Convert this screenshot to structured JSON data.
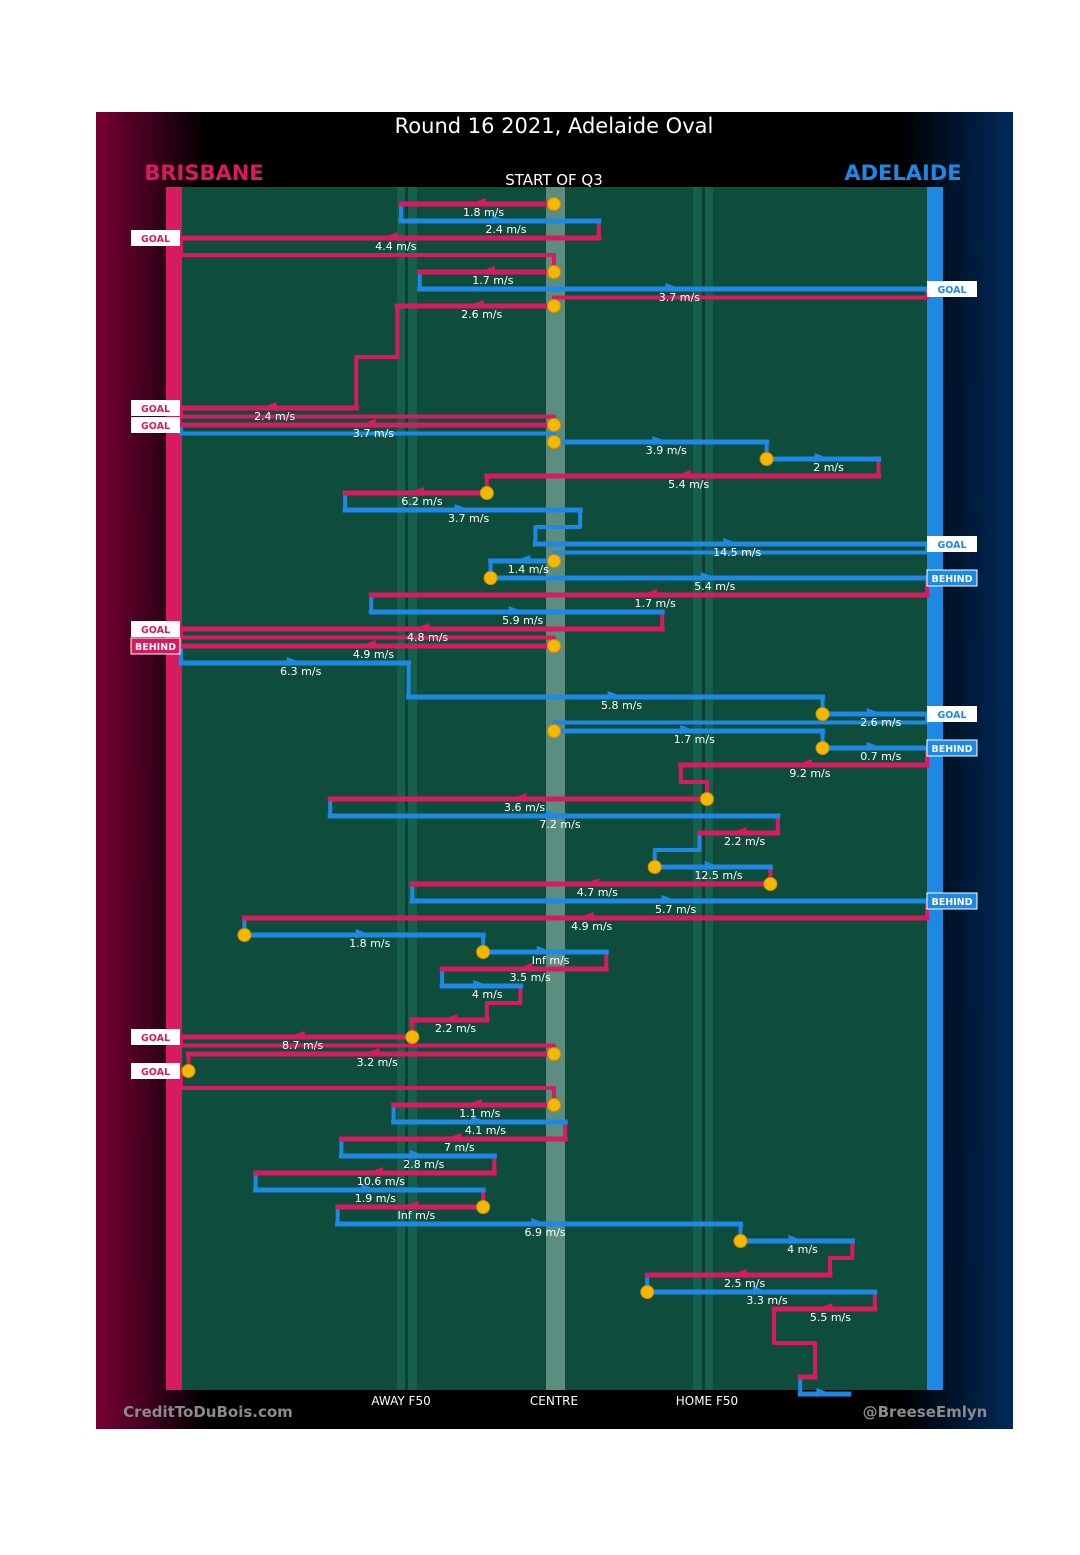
{
  "title": "Round 16 2021, Adelaide Oval",
  "left_team": "BRISBANE",
  "right_team": "ADELAIDE",
  "period_label": "START OF Q3",
  "credit_left": "CreditToDuBois.com",
  "credit_right": "@BreeseEmlyn",
  "colors": {
    "brisbane": "#d81b60",
    "adelaide": "#1e88e5",
    "field": "#0e4d3c",
    "ball": "#f5b800",
    "background": "#000000"
  },
  "chart_data": {
    "type": "chain-flow",
    "xlabel_ticks": [
      "AWAY F50",
      "CENTRE",
      "HOME F50"
    ],
    "x_ticks_value": [
      -0.41,
      0,
      0.41
    ],
    "xlim": [
      -1,
      1
    ],
    "units": "m/s",
    "segments": [
      {
        "team": "brisbane",
        "x1": 0,
        "x2": -0.41,
        "step": 0,
        "speed": "1.8 m/s",
        "ball": true
      },
      {
        "team": "adelaide",
        "x1": -0.41,
        "x2": 0.12,
        "step": 1,
        "speed": "2.4 m/s"
      },
      {
        "team": "brisbane",
        "x1": 0.12,
        "x2": -1,
        "step": 2,
        "speed": "4.4 m/s",
        "result": "GOAL"
      },
      {
        "team": "brisbane",
        "x1": 0,
        "x2": -0.36,
        "step": 4,
        "speed": "1.7 m/s",
        "ball": true
      },
      {
        "team": "adelaide",
        "x1": -0.36,
        "x2": 1,
        "step": 5,
        "speed": "3.7 m/s",
        "result": "GOAL"
      },
      {
        "team": "brisbane",
        "x1": 0,
        "x2": -0.42,
        "step": 6,
        "speed": "2.6 m/s",
        "ball": true
      },
      {
        "team": "brisbane",
        "x1": -0.53,
        "x2": -1,
        "step": 12,
        "speed": "2.4 m/s",
        "result": "GOAL"
      },
      {
        "team": "brisbane",
        "x1": 0,
        "x2": -1,
        "step": 13,
        "speed": "3.7 m/s",
        "result": "GOAL",
        "ball": true
      },
      {
        "team": "adelaide",
        "x1": 0,
        "x2": 0.57,
        "step": 14,
        "speed": "3.9 m/s",
        "ball": true
      },
      {
        "team": "adelaide",
        "x1": 0.57,
        "x2": 0.87,
        "step": 15,
        "speed": "2 m/s",
        "ball": true
      },
      {
        "team": "brisbane",
        "x1": 0.87,
        "x2": -0.18,
        "step": 16,
        "speed": "5.4 m/s"
      },
      {
        "team": "brisbane",
        "x1": -0.18,
        "x2": -0.56,
        "step": 17,
        "speed": "6.2 m/s",
        "ball": true
      },
      {
        "team": "adelaide",
        "x1": -0.56,
        "x2": 0.07,
        "step": 18,
        "speed": "3.7 m/s"
      },
      {
        "team": "adelaide",
        "x1": -0.05,
        "x2": 1,
        "step": 20,
        "speed": "14.5 m/s",
        "result": "GOAL"
      },
      {
        "team": "adelaide",
        "x1": 0,
        "x2": -0.17,
        "step": 21,
        "speed": "1.4 m/s",
        "ball": true
      },
      {
        "team": "adelaide",
        "x1": -0.17,
        "x2": 1,
        "step": 22,
        "speed": "5.4 m/s",
        "result": "BEHIND",
        "ball": true
      },
      {
        "team": "brisbane",
        "x1": 1,
        "x2": -0.49,
        "step": 23,
        "speed": "1.7 m/s"
      },
      {
        "team": "adelaide",
        "x1": -0.49,
        "x2": 0.29,
        "step": 24,
        "speed": "5.9 m/s"
      },
      {
        "team": "brisbane",
        "x1": 0.29,
        "x2": -1,
        "step": 25,
        "speed": "4.8 m/s",
        "result": "GOAL"
      },
      {
        "team": "brisbane",
        "x1": 0,
        "x2": -1,
        "step": 26,
        "speed": "4.9 m/s",
        "result": "BEHIND",
        "ball": true
      },
      {
        "team": "adelaide",
        "x1": -1,
        "x2": -0.39,
        "step": 27,
        "speed": "6.3 m/s"
      },
      {
        "team": "adelaide",
        "x1": -0.39,
        "x2": 0.72,
        "step": 29,
        "speed": "5.8 m/s"
      },
      {
        "team": "adelaide",
        "x1": 0.72,
        "x2": 1,
        "step": 30,
        "speed": "2.6 m/s",
        "result": "GOAL",
        "ball": true
      },
      {
        "team": "adelaide",
        "x1": 0,
        "x2": 0.72,
        "step": 31,
        "speed": "1.7 m/s",
        "ball": true
      },
      {
        "team": "adelaide",
        "x1": 0.72,
        "x2": 1,
        "step": 32,
        "speed": "0.7 m/s",
        "result": "BEHIND",
        "ball": true
      },
      {
        "team": "brisbane",
        "x1": 1,
        "x2": 0.34,
        "step": 33,
        "speed": "9.2 m/s"
      },
      {
        "team": "brisbane",
        "x1": 0.41,
        "x2": -0.6,
        "step": 35,
        "speed": "3.6 m/s",
        "ball": true
      },
      {
        "team": "adelaide",
        "x1": -0.6,
        "x2": 0.6,
        "step": 36,
        "speed": "7.2 m/s"
      },
      {
        "team": "brisbane",
        "x1": 0.6,
        "x2": 0.39,
        "step": 37,
        "speed": "2.2 m/s"
      },
      {
        "team": "adelaide",
        "x1": 0.27,
        "x2": 0.58,
        "step": 39,
        "speed": "12.5 m/s",
        "ball": true
      },
      {
        "team": "brisbane",
        "x1": 0.58,
        "x2": -0.38,
        "step": 40,
        "speed": "4.7 m/s",
        "ball": true
      },
      {
        "team": "adelaide",
        "x1": -0.38,
        "x2": 1,
        "step": 41,
        "speed": "5.7 m/s",
        "result": "BEHIND"
      },
      {
        "team": "brisbane",
        "x1": 1,
        "x2": -0.83,
        "step": 42,
        "speed": "4.9 m/s"
      },
      {
        "team": "adelaide",
        "x1": -0.83,
        "x2": -0.19,
        "step": 43,
        "speed": "1.8 m/s",
        "ball": true
      },
      {
        "team": "adelaide",
        "x1": -0.19,
        "x2": 0.14,
        "step": 44,
        "speed": "Inf m/s",
        "ball": true
      },
      {
        "team": "brisbane",
        "x1": 0.14,
        "x2": -0.3,
        "step": 45,
        "speed": "3.5 m/s"
      },
      {
        "team": "adelaide",
        "x1": -0.3,
        "x2": -0.09,
        "step": 46,
        "speed": "4 m/s"
      },
      {
        "team": "brisbane",
        "x1": -0.18,
        "x2": -0.38,
        "step": 48,
        "speed": "2.2 m/s"
      },
      {
        "team": "brisbane",
        "x1": -0.38,
        "x2": -1,
        "step": 49,
        "speed": "8.7 m/s",
        "result": "GOAL",
        "ball": true
      },
      {
        "team": "brisbane",
        "x1": 0,
        "x2": -0.98,
        "step": 50,
        "speed": "3.2 m/s",
        "ball": true
      },
      {
        "team": "brisbane",
        "x1": -0.98,
        "x2": -1,
        "step": 51,
        "speed": "",
        "result": "GOAL",
        "ball": true
      },
      {
        "team": "brisbane",
        "x1": 0,
        "x2": -0.43,
        "step": 53,
        "speed": "1.1 m/s",
        "ball": true
      },
      {
        "team": "adelaide",
        "x1": -0.43,
        "x2": 0.03,
        "step": 54,
        "speed": "4.1 m/s"
      },
      {
        "team": "brisbane",
        "x1": 0.03,
        "x2": -0.57,
        "step": 55,
        "speed": "7 m/s"
      },
      {
        "team": "adelaide",
        "x1": -0.57,
        "x2": -0.16,
        "step": 56,
        "speed": "2.8 m/s"
      },
      {
        "team": "brisbane",
        "x1": -0.16,
        "x2": -0.8,
        "step": 57,
        "speed": "10.6 m/s"
      },
      {
        "team": "adelaide",
        "x1": -0.8,
        "x2": -0.19,
        "step": 58,
        "speed": "1.9 m/s"
      },
      {
        "team": "brisbane",
        "x1": -0.19,
        "x2": -0.58,
        "step": 59,
        "speed": "Inf m/s",
        "ball": true
      },
      {
        "team": "adelaide",
        "x1": -0.58,
        "x2": 0.5,
        "step": 60,
        "speed": "6.9 m/s"
      },
      {
        "team": "adelaide",
        "x1": 0.5,
        "x2": 0.8,
        "step": 61,
        "speed": "4 m/s",
        "ball": true
      },
      {
        "team": "brisbane",
        "x1": 0.74,
        "x2": 0.25,
        "step": 63,
        "speed": "2.5 m/s"
      },
      {
        "team": "adelaide",
        "x1": 0.25,
        "x2": 0.86,
        "step": 64,
        "speed": "3.3 m/s",
        "ball": true
      },
      {
        "team": "brisbane",
        "x1": 0.86,
        "x2": 0.59,
        "step": 65,
        "speed": "5.5 m/s"
      },
      {
        "team": "brisbane",
        "x1": 0.7,
        "x2": 0.66,
        "step": 69,
        "speed": ""
      },
      {
        "team": "adelaide",
        "x1": 0.66,
        "x2": 0.79,
        "step": 70,
        "speed": ""
      }
    ]
  }
}
